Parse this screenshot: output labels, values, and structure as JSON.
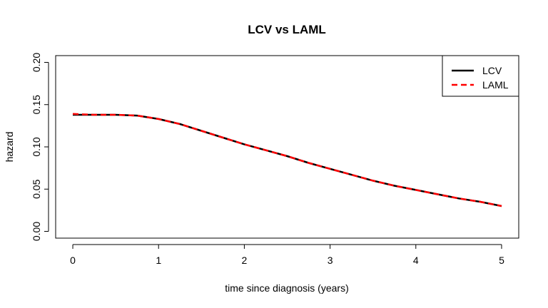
{
  "chart_data": {
    "type": "line",
    "title": "LCV vs LAML",
    "xlabel": "time since diagnosis (years)",
    "ylabel": "hazard",
    "xlim": [
      -0.2,
      5.2
    ],
    "ylim": [
      -0.008,
      0.208
    ],
    "x_ticks": [
      0,
      1,
      2,
      3,
      4,
      5
    ],
    "x_tick_labels": [
      "0",
      "1",
      "2",
      "3",
      "4",
      "5"
    ],
    "y_ticks": [
      0.0,
      0.05,
      0.1,
      0.15,
      0.2
    ],
    "y_tick_labels": [
      "0.00",
      "0.05",
      "0.10",
      "0.15",
      "0.20"
    ],
    "grid": false,
    "legend_position": "top-right",
    "series": [
      {
        "name": "LCV",
        "color": "#000000",
        "line_style": "solid",
        "x": [
          0,
          0.25,
          0.5,
          0.75,
          1.0,
          1.25,
          1.5,
          1.75,
          2.0,
          2.25,
          2.5,
          2.75,
          3.0,
          3.25,
          3.5,
          3.75,
          4.0,
          4.25,
          4.5,
          4.75,
          5.0
        ],
        "values": [
          0.138,
          0.138,
          0.138,
          0.137,
          0.133,
          0.127,
          0.119,
          0.111,
          0.103,
          0.096,
          0.089,
          0.081,
          0.074,
          0.067,
          0.06,
          0.054,
          0.049,
          0.044,
          0.039,
          0.035,
          0.03
        ]
      },
      {
        "name": "LAML",
        "color": "#ff0000",
        "line_style": "dashed",
        "x": [
          0,
          0.25,
          0.5,
          0.75,
          1.0,
          1.25,
          1.5,
          1.75,
          2.0,
          2.25,
          2.5,
          2.75,
          3.0,
          3.25,
          3.5,
          3.75,
          4.0,
          4.25,
          4.5,
          4.75,
          5.0
        ],
        "values": [
          0.139,
          0.138,
          0.138,
          0.137,
          0.133,
          0.127,
          0.119,
          0.111,
          0.103,
          0.096,
          0.089,
          0.081,
          0.074,
          0.067,
          0.06,
          0.054,
          0.049,
          0.044,
          0.039,
          0.035,
          0.03
        ]
      }
    ]
  }
}
